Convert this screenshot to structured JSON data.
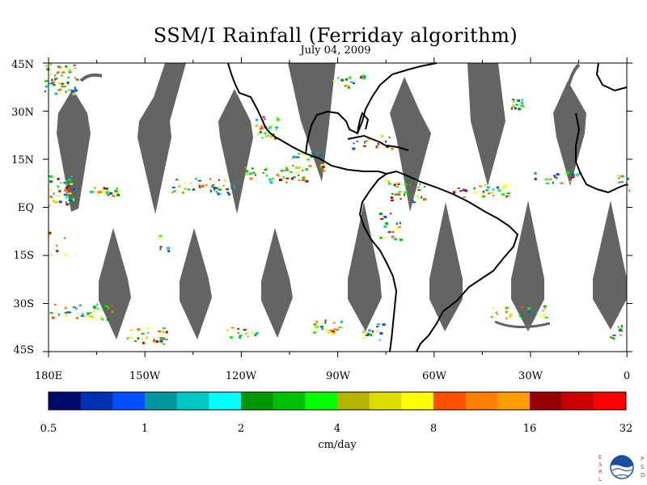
{
  "title": "SSM/I Rainfall (Ferriday algorithm)",
  "date": "July 04, 2009",
  "lat_labels": [
    "45N",
    "30N",
    "15N",
    "EQ",
    "15S",
    "30S",
    "45S"
  ],
  "lon_labels": [
    "180E",
    "150W",
    "120W",
    "90W",
    "60W",
    "30W",
    "0"
  ],
  "colorbar": {
    "unit": "cm/day",
    "tick_labels": [
      "0.5",
      "1",
      "2",
      "4",
      "8",
      "16",
      "32"
    ],
    "colors": [
      "#000a6b",
      "#0030b4",
      "#0050ff",
      "#00969c",
      "#00c8c8",
      "#00ffff",
      "#009600",
      "#00c000",
      "#00ff00",
      "#b4b400",
      "#dcdc00",
      "#ffff00",
      "#ff5000",
      "#ff8000",
      "#ffa000",
      "#960000",
      "#c80000",
      "#ff0000"
    ]
  },
  "swath_color": "#646464",
  "logo": {
    "left_text": "ESRL",
    "right_text": "PSD",
    "emblem": "noaa-emblem"
  }
}
